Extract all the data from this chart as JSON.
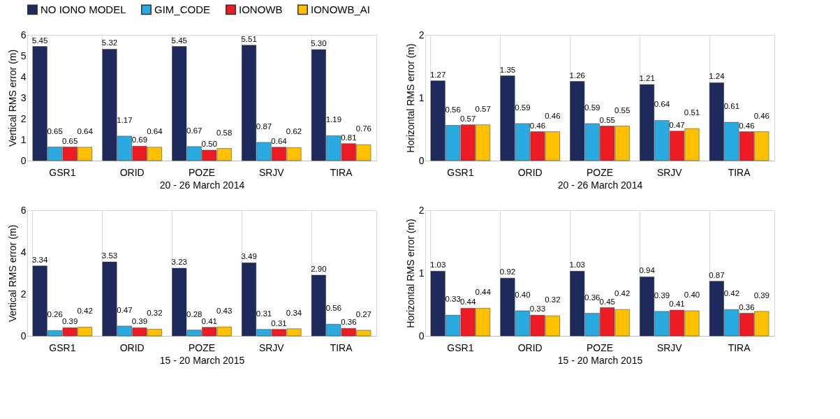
{
  "chart_data": [
    {
      "type": "bar",
      "xlabel": "20 - 26 March 2014",
      "ylabel": "Vertical RMS error (m)",
      "categories": [
        "GSR1",
        "ORID",
        "POZE",
        "SRJV",
        "TIRA"
      ],
      "ylim": [
        0,
        6
      ],
      "yticks": [
        0,
        1,
        2,
        3,
        4,
        5,
        6
      ],
      "grid": "x",
      "legend": "top",
      "series": [
        {
          "name": "NO IONO MODEL",
          "color": "#1f2a5c",
          "values": [
            5.45,
            5.32,
            5.45,
            5.51,
            5.3
          ],
          "value_labels": [
            "5.45",
            "5.32",
            "5.45",
            "5.51",
            "5.30"
          ]
        },
        {
          "name": "GIM_CODE",
          "color": "#29abe2",
          "values": [
            0.65,
            1.17,
            0.67,
            0.87,
            1.19
          ],
          "value_labels": [
            "0.65",
            "1.17",
            "0.67",
            "0.87",
            "1.19"
          ]
        },
        {
          "name": "IONOWB",
          "color": "#ed1c24",
          "values": [
            0.65,
            0.69,
            0.5,
            0.64,
            0.81
          ],
          "value_labels": [
            "0.65",
            "0.69",
            "0.50",
            "0.64",
            "0.81"
          ]
        },
        {
          "name": "IONOWB_AI",
          "color": "#ffc000",
          "values": [
            0.64,
            0.64,
            0.58,
            0.62,
            0.76
          ],
          "value_labels": [
            "0.64",
            "0.64",
            "0.58",
            "0.62",
            "0.76"
          ]
        }
      ]
    },
    {
      "type": "bar",
      "xlabel": "20 - 26 March 2014",
      "ylabel": "Horizontal RMS error (m)",
      "categories": [
        "GSR1",
        "ORID",
        "POZE",
        "SRJV",
        "TIRA"
      ],
      "ylim": [
        0,
        2
      ],
      "yticks": [
        0,
        1,
        2
      ],
      "grid": "x",
      "series": [
        {
          "name": "NO IONO MODEL",
          "color": "#1f2a5c",
          "values": [
            1.27,
            1.35,
            1.26,
            1.21,
            1.24
          ],
          "value_labels": [
            "1.27",
            "1.35",
            "1.26",
            "1.21",
            "1.24"
          ]
        },
        {
          "name": "GIM_CODE",
          "color": "#29abe2",
          "values": [
            0.56,
            0.59,
            0.59,
            0.64,
            0.61
          ],
          "value_labels": [
            "0.56",
            "0.59",
            "0.59",
            "0.64",
            "0.61"
          ]
        },
        {
          "name": "IONOWB",
          "color": "#ed1c24",
          "values": [
            0.57,
            0.46,
            0.55,
            0.47,
            0.46
          ],
          "value_labels": [
            "0.57",
            "0.46",
            "0.55",
            "0.47",
            "0.46"
          ]
        },
        {
          "name": "IONOWB_AI",
          "color": "#ffc000",
          "values": [
            0.57,
            0.46,
            0.55,
            0.51,
            0.46
          ],
          "value_labels": [
            "0.57",
            "0.46",
            "0.55",
            "0.51",
            "0.46"
          ]
        }
      ]
    },
    {
      "type": "bar",
      "xlabel": "15 - 20 March 2015",
      "ylabel": "Vertical RMS error (m)",
      "categories": [
        "GSR1",
        "ORID",
        "POZE",
        "SRJV",
        "TIRA"
      ],
      "ylim": [
        0,
        6
      ],
      "yticks": [
        0,
        2,
        4,
        6
      ],
      "grid": "x",
      "series": [
        {
          "name": "NO IONO MODEL",
          "color": "#1f2a5c",
          "values": [
            3.34,
            3.53,
            3.23,
            3.49,
            2.9
          ],
          "value_labels": [
            "3.34",
            "3.53",
            "3.23",
            "3.49",
            "2.90"
          ]
        },
        {
          "name": "GIM_CODE",
          "color": "#29abe2",
          "values": [
            0.26,
            0.47,
            0.28,
            0.31,
            0.56
          ],
          "value_labels": [
            "0.26",
            "0.47",
            "0.28",
            "0.31",
            "0.56"
          ]
        },
        {
          "name": "IONOWB",
          "color": "#ed1c24",
          "values": [
            0.39,
            0.39,
            0.41,
            0.31,
            0.36
          ],
          "value_labels": [
            "0.39",
            "0.39",
            "0.41",
            "0.31",
            "0.36"
          ]
        },
        {
          "name": "IONOWB_AI",
          "color": "#ffc000",
          "values": [
            0.42,
            0.32,
            0.43,
            0.34,
            0.27
          ],
          "value_labels": [
            "0.42",
            "0.32",
            "0.43",
            "0.34",
            "0.27"
          ]
        }
      ]
    },
    {
      "type": "bar",
      "xlabel": "15 - 20 March 2015",
      "ylabel": "Horizontal RMS error (m)",
      "categories": [
        "GSR1",
        "ORID",
        "POZE",
        "SRJV",
        "TIRA"
      ],
      "ylim": [
        0,
        2
      ],
      "yticks": [
        0,
        1,
        2
      ],
      "grid": "x",
      "series": [
        {
          "name": "NO IONO MODEL",
          "color": "#1f2a5c",
          "values": [
            1.03,
            0.92,
            1.03,
            0.94,
            0.87
          ],
          "value_labels": [
            "1.03",
            "0.92",
            "1.03",
            "0.94",
            "0.87"
          ]
        },
        {
          "name": "GIM_CODE",
          "color": "#29abe2",
          "values": [
            0.33,
            0.4,
            0.36,
            0.39,
            0.42
          ],
          "value_labels": [
            "0.33",
            "0.40",
            "0.36",
            "0.39",
            "0.42"
          ]
        },
        {
          "name": "IONOWB",
          "color": "#ed1c24",
          "values": [
            0.44,
            0.33,
            0.45,
            0.41,
            0.36
          ],
          "value_labels": [
            "0.44",
            "0.33",
            "0.45",
            "0.41",
            "0.36"
          ]
        },
        {
          "name": "IONOWB_AI",
          "color": "#ffc000",
          "values": [
            0.44,
            0.32,
            0.42,
            0.4,
            0.39
          ],
          "value_labels": [
            "0.44",
            "0.32",
            "0.42",
            "0.40",
            "0.39"
          ]
        }
      ]
    }
  ]
}
